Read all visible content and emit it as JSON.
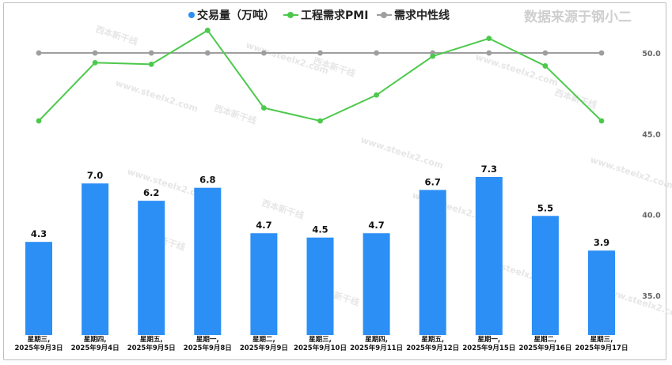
{
  "watermark": "数据来源于钢小二",
  "background_marks": [
    "www.steelx2.com",
    "西本新干线"
  ],
  "legend": [
    {
      "label": "交易量（万吨）",
      "color": "#2b8ff5",
      "style": "dot"
    },
    {
      "label": "工程需求PMI",
      "color": "#4cc94c",
      "style": "line-dot"
    },
    {
      "label": "需求中性线",
      "color": "#9e9e9e",
      "style": "line-dot"
    }
  ],
  "chart_data": {
    "type": "bar+line",
    "categories": [
      [
        "星期三,",
        "2025年9月3日"
      ],
      [
        "星期四,",
        "2025年9月4日"
      ],
      [
        "星期五,",
        "2025年9月5日"
      ],
      [
        "星期一,",
        "2025年9月8日"
      ],
      [
        "星期二,",
        "2025年9月9日"
      ],
      [
        "星期三,",
        "2025年9月10日"
      ],
      [
        "星期四,",
        "2025年9月11日"
      ],
      [
        "星期五,",
        "2025年9月12日"
      ],
      [
        "星期一,",
        "2025年9月15日"
      ],
      [
        "星期二,",
        "2025年9月16日"
      ],
      [
        "星期三,",
        "2025年9月17日"
      ]
    ],
    "bars": {
      "name": "交易量（万吨）",
      "values": [
        4.3,
        7.0,
        6.2,
        6.8,
        4.7,
        4.5,
        4.7,
        6.7,
        7.3,
        5.5,
        3.9
      ],
      "labels": [
        "4.3",
        "7.0",
        "6.2",
        "6.8",
        "4.7",
        "4.5",
        "4.7",
        "6.7",
        "7.3",
        "5.5",
        "3.9"
      ],
      "color": "#2b8ff5",
      "scale_max": 8.5
    },
    "lines": [
      {
        "name": "工程需求PMI",
        "values": [
          45.8,
          49.4,
          49.3,
          51.4,
          46.6,
          45.8,
          47.4,
          49.8,
          50.9,
          49.2,
          45.8
        ],
        "color": "#4cc94c"
      },
      {
        "name": "需求中性线",
        "values": [
          50,
          50,
          50,
          50,
          50,
          50,
          50,
          50,
          50,
          50,
          50
        ],
        "color": "#9e9e9e"
      }
    ],
    "y_right": {
      "ticks": [
        "50.0",
        "45.0",
        "40.0",
        "35.0"
      ],
      "values": [
        50,
        45,
        40,
        35
      ],
      "range": [
        32.8,
        52.3
      ]
    },
    "grid": false,
    "legend_position": "top"
  }
}
